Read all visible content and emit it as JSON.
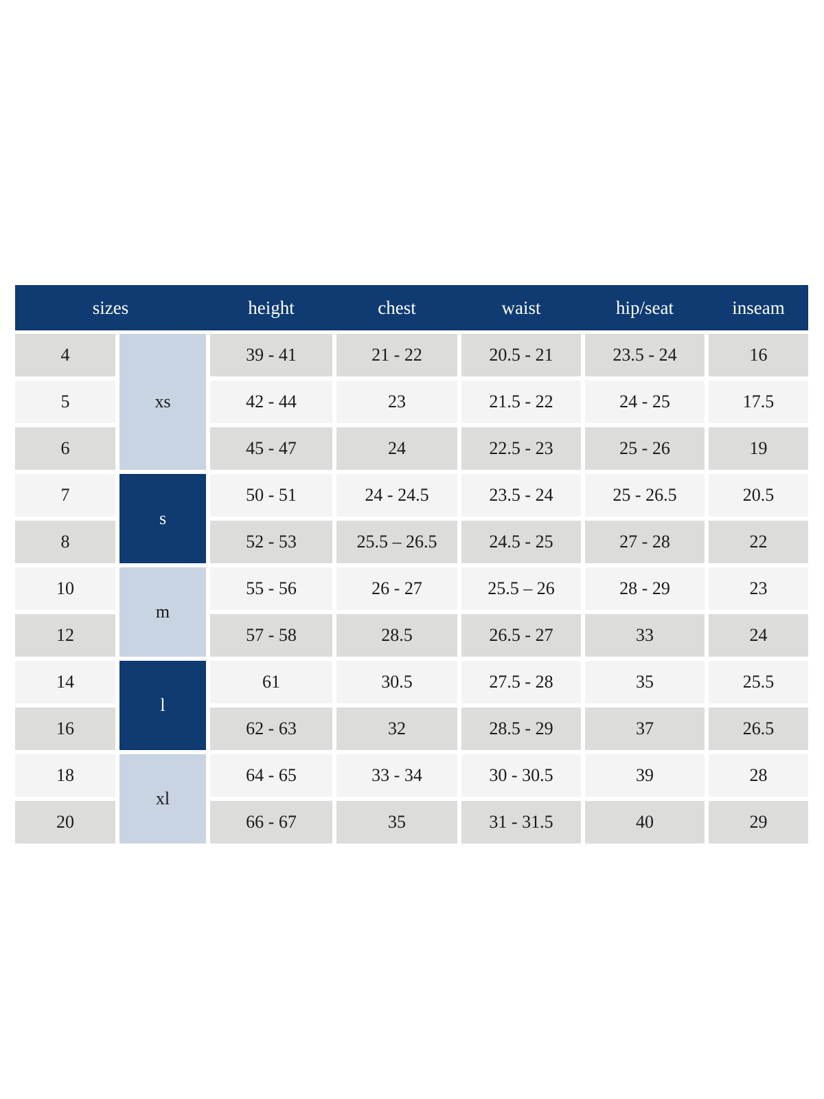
{
  "chart_data": {
    "type": "table",
    "header": {
      "sizes": "sizes",
      "height": "height",
      "chest": "chest",
      "waist": "waist",
      "hip_seat": "hip/seat",
      "inseam": "inseam"
    },
    "groups": [
      {
        "label": "xs",
        "tone": "light",
        "rows": [
          {
            "size": "4",
            "height": "39 - 41",
            "chest": "21 - 22",
            "waist": "20.5 - 21",
            "hip_seat": "23.5 - 24",
            "inseam": "16"
          },
          {
            "size": "5",
            "height": "42 - 44",
            "chest": "23",
            "waist": "21.5 - 22",
            "hip_seat": "24 - 25",
            "inseam": "17.5"
          },
          {
            "size": "6",
            "height": "45 - 47",
            "chest": "24",
            "waist": "22.5 - 23",
            "hip_seat": "25 - 26",
            "inseam": "19"
          }
        ]
      },
      {
        "label": "s",
        "tone": "navy",
        "rows": [
          {
            "size": "7",
            "height": "50 - 51",
            "chest": "24 - 24.5",
            "waist": "23.5 - 24",
            "hip_seat": "25 - 26.5",
            "inseam": "20.5"
          },
          {
            "size": "8",
            "height": "52 - 53",
            "chest": "25.5 – 26.5",
            "waist": "24.5 - 25",
            "hip_seat": "27 - 28",
            "inseam": "22"
          }
        ]
      },
      {
        "label": "m",
        "tone": "light",
        "rows": [
          {
            "size": "10",
            "height": "55 - 56",
            "chest": "26 - 27",
            "waist": "25.5 – 26",
            "hip_seat": "28 - 29",
            "inseam": "23"
          },
          {
            "size": "12",
            "height": "57 - 58",
            "chest": "28.5",
            "waist": "26.5 - 27",
            "hip_seat": "33",
            "inseam": "24"
          }
        ]
      },
      {
        "label": "l",
        "tone": "navy",
        "rows": [
          {
            "size": "14",
            "height": "61",
            "chest": "30.5",
            "waist": "27.5 - 28",
            "hip_seat": "35",
            "inseam": "25.5"
          },
          {
            "size": "16",
            "height": "62 - 63",
            "chest": "32",
            "waist": "28.5 - 29",
            "hip_seat": "37",
            "inseam": "26.5"
          }
        ]
      },
      {
        "label": "xl",
        "tone": "light",
        "rows": [
          {
            "size": "18",
            "height": "64 - 65",
            "chest": "33 - 34",
            "waist": "30 - 30.5",
            "hip_seat": "39",
            "inseam": "28"
          },
          {
            "size": "20",
            "height": "66 - 67",
            "chest": "35",
            "waist": "31 - 31.5",
            "hip_seat": "40",
            "inseam": "29"
          }
        ]
      }
    ],
    "colors": {
      "header_bg": "#0f3a72",
      "header_text": "#ffffff",
      "group_light_bg": "#c9d4e3",
      "group_navy_bg": "#0f3a72",
      "group_navy_text": "#ffffff",
      "row_gray_bg": "#dcdcdb",
      "row_light_bg": "#f4f4f4",
      "body_text": "#1a1a1a",
      "page_bg": "#ffffff"
    }
  }
}
